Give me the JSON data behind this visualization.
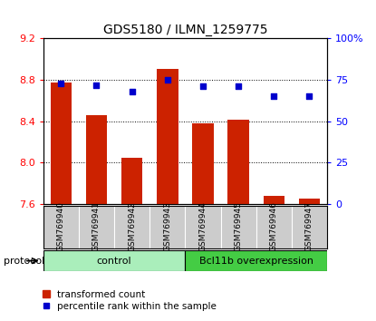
{
  "title": "GDS5180 / ILMN_1259775",
  "samples": [
    "GSM769940",
    "GSM769941",
    "GSM769942",
    "GSM769943",
    "GSM769944",
    "GSM769945",
    "GSM769946",
    "GSM769947"
  ],
  "transformed_counts": [
    8.77,
    8.46,
    8.05,
    8.91,
    8.38,
    8.41,
    7.68,
    7.65
  ],
  "percentile_ranks": [
    73,
    72,
    68,
    75,
    71,
    71,
    65,
    65
  ],
  "ylim_left": [
    7.6,
    9.2
  ],
  "ylim_right": [
    0,
    100
  ],
  "yticks_left": [
    7.6,
    8.0,
    8.4,
    8.8,
    9.2
  ],
  "yticks_right": [
    0,
    25,
    50,
    75,
    100
  ],
  "ytick_labels_right": [
    "0",
    "25",
    "50",
    "75",
    "100%"
  ],
  "bar_color": "#cc2200",
  "dot_color": "#0000cc",
  "bar_bottom": 7.6,
  "grid_color": "#000000",
  "bg_color": "#ffffff",
  "plot_bg": "#ffffff",
  "tick_label_area_bg": "#cccccc",
  "control_color": "#aaeebb",
  "overexp_color": "#44cc44",
  "bar_width": 0.6
}
